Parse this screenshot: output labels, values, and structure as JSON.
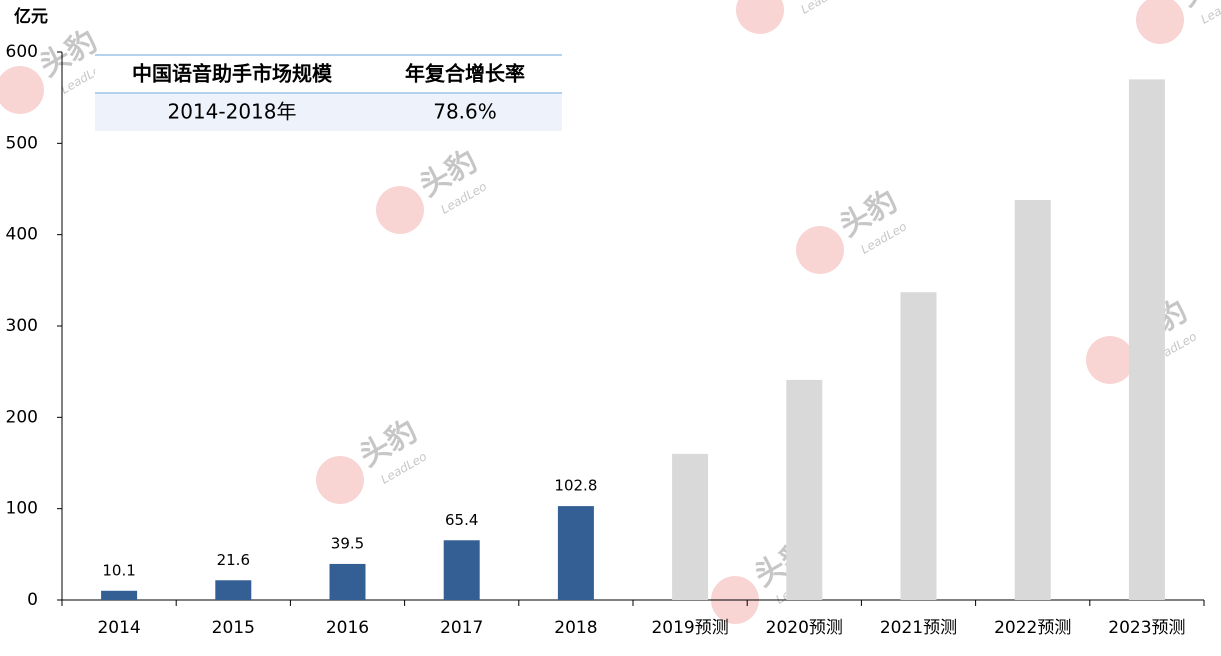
{
  "chart_data": {
    "type": "bar",
    "y_label": "亿元",
    "categories": [
      "2014",
      "2015",
      "2016",
      "2017",
      "2018",
      "2019预测",
      "2020预测",
      "2021预测",
      "2022预测",
      "2023预测"
    ],
    "values": [
      10.1,
      21.6,
      39.5,
      65.4,
      102.8,
      160,
      241,
      337,
      438,
      570
    ],
    "value_labels": [
      "10.1",
      "21.6",
      "39.5",
      "65.4",
      "102.8",
      null,
      null,
      null,
      null,
      null
    ],
    "colors": [
      "#345f94",
      "#345f94",
      "#345f94",
      "#345f94",
      "#345f94",
      "#d9d9d9",
      "#d9d9d9",
      "#d9d9d9",
      "#d9d9d9",
      "#d9d9d9"
    ],
    "ylim": [
      0,
      600
    ],
    "yticks": [
      0,
      100,
      200,
      300,
      400,
      500,
      600
    ],
    "grid": false,
    "table": {
      "header": [
        "中国语音助手市场规模",
        "年复合增长率"
      ],
      "rows": [
        [
          "2014-2018年",
          "78.6%"
        ]
      ]
    },
    "watermark": {
      "text": "头豹",
      "subtext": "LeadLeo"
    }
  }
}
